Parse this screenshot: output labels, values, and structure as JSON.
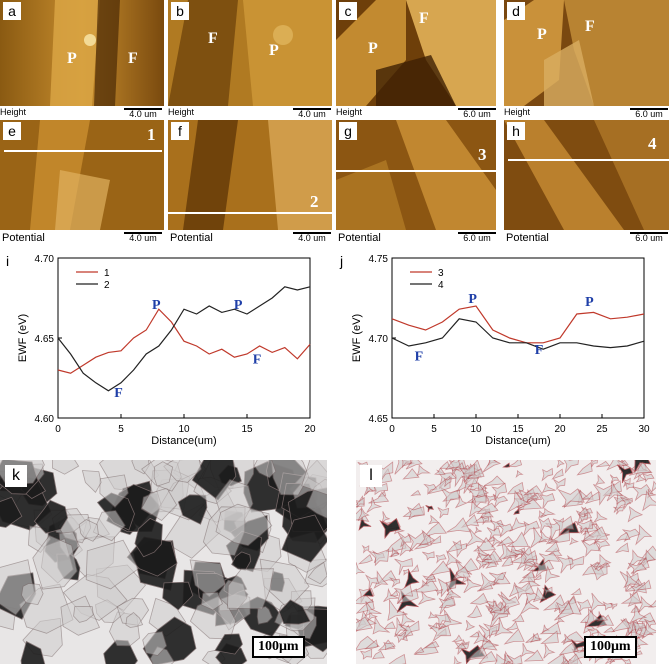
{
  "afm_panels": [
    {
      "letter": "a",
      "phases": [
        "P",
        "F"
      ],
      "caption": "Height",
      "scale": "4.0 um"
    },
    {
      "letter": "b",
      "phases": [
        "F",
        "P"
      ],
      "caption": "",
      "scale": "4.0 um"
    },
    {
      "letter": "c",
      "phases": [
        "P",
        "F"
      ],
      "caption": "Height",
      "scale": "6.0 um"
    },
    {
      "letter": "d",
      "phases": [
        "P",
        "F"
      ],
      "caption": "Height",
      "scale": "6.0 um"
    },
    {
      "letter": "e",
      "line": "1",
      "caption": "Potential",
      "scale": "4.0 um"
    },
    {
      "letter": "f",
      "line": "2",
      "caption": "Potential",
      "scale": "4.0 um"
    },
    {
      "letter": "g",
      "line": "3",
      "caption": "Potential",
      "scale": "6.0 um"
    },
    {
      "letter": "h",
      "line": "4",
      "caption": "Potential",
      "scale": "6.0 um"
    }
  ],
  "b_caption_extra": "Height",
  "chart_data": [
    {
      "panel": "i",
      "type": "line",
      "xlabel": "Distance(um)",
      "ylabel": "EWF (eV)",
      "xlim": [
        0,
        20
      ],
      "ylim": [
        4.6,
        4.7
      ],
      "xticks": [
        "0",
        "5",
        "10",
        "15",
        "20"
      ],
      "yticks": [
        "4.60",
        "4.65",
        "4.70"
      ],
      "series": [
        {
          "name": "1",
          "color": "#c0392b",
          "x": [
            0,
            1,
            2,
            3,
            4,
            5,
            6,
            7,
            8,
            9,
            10,
            11,
            12,
            13,
            14,
            15,
            16,
            17,
            18,
            19,
            20
          ],
          "y": [
            4.63,
            4.628,
            4.633,
            4.638,
            4.641,
            4.642,
            4.65,
            4.655,
            4.668,
            4.66,
            4.648,
            4.645,
            4.64,
            4.643,
            4.638,
            4.64,
            4.645,
            4.641,
            4.644,
            4.637,
            4.646
          ]
        },
        {
          "name": "2",
          "color": "#222222",
          "x": [
            0,
            1,
            2,
            3,
            4,
            5,
            6,
            7,
            8,
            9,
            10,
            11,
            12,
            13,
            14,
            15,
            16,
            17,
            18,
            19,
            20
          ],
          "y": [
            4.65,
            4.64,
            4.628,
            4.622,
            4.617,
            4.622,
            4.63,
            4.64,
            4.645,
            4.655,
            4.668,
            4.665,
            4.67,
            4.666,
            4.668,
            4.665,
            4.67,
            4.675,
            4.682,
            4.68,
            4.682
          ]
        }
      ],
      "annotations": [
        {
          "text": "P",
          "x": 7.8,
          "y": 4.668
        },
        {
          "text": "P",
          "x": 14.3,
          "y": 4.668
        },
        {
          "text": "F",
          "x": 15.8,
          "y": 4.634
        },
        {
          "text": "F",
          "x": 4.8,
          "y": 4.613
        }
      ]
    },
    {
      "panel": "j",
      "type": "line",
      "xlabel": "Distance(um)",
      "ylabel": "EWF (eV)",
      "xlim": [
        0,
        30
      ],
      "ylim": [
        4.65,
        4.75
      ],
      "xticks": [
        "0",
        "5",
        "10",
        "15",
        "20",
        "25",
        "30"
      ],
      "yticks": [
        "4.65",
        "4.70",
        "4.75"
      ],
      "series": [
        {
          "name": "3",
          "color": "#c0392b",
          "x": [
            0,
            2,
            4,
            6,
            8,
            10,
            12,
            14,
            16,
            18,
            20,
            22,
            24,
            26,
            28,
            30
          ],
          "y": [
            4.712,
            4.708,
            4.705,
            4.71,
            4.718,
            4.72,
            4.705,
            4.7,
            4.697,
            4.697,
            4.7,
            4.715,
            4.716,
            4.712,
            4.713,
            4.715
          ]
        },
        {
          "name": "4",
          "color": "#222222",
          "x": [
            0,
            2,
            4,
            6,
            8,
            10,
            12,
            14,
            16,
            18,
            20,
            22,
            24,
            26,
            28,
            30
          ],
          "y": [
            4.7,
            4.695,
            4.697,
            4.7,
            4.712,
            4.71,
            4.7,
            4.697,
            4.697,
            4.693,
            4.697,
            4.697,
            4.695,
            4.694,
            4.695,
            4.698
          ]
        }
      ],
      "annotations": [
        {
          "text": "P",
          "x": 9.6,
          "y": 4.722
        },
        {
          "text": "P",
          "x": 23.5,
          "y": 4.72
        },
        {
          "text": "F",
          "x": 3.2,
          "y": 4.686
        },
        {
          "text": "F",
          "x": 17.5,
          "y": 4.69
        }
      ]
    }
  ],
  "micrographs": [
    {
      "letter": "k",
      "scale": "100μm"
    },
    {
      "letter": "l",
      "scale": "100μm"
    }
  ]
}
